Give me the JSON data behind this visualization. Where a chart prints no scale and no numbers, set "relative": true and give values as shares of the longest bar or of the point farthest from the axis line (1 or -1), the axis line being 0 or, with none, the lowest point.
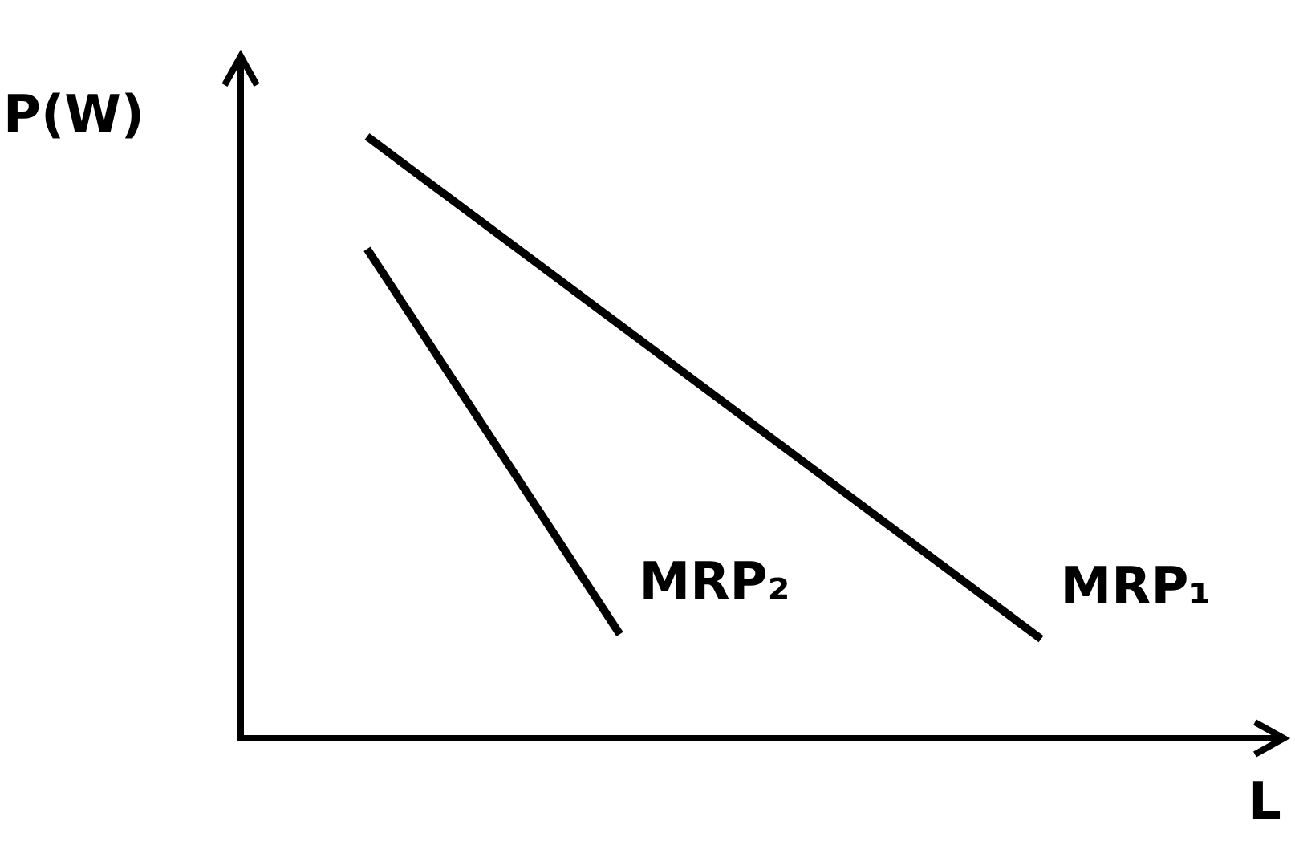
{
  "chart_data": {
    "type": "line",
    "relative": true,
    "xlabel": "L",
    "ylabel": "P(W)",
    "marker": "none",
    "categories": [
      null,
      null,
      null,
      null,
      null,
      null,
      null,
      null,
      null,
      null,
      null,
      null
    ],
    "series": [
      {
        "name": "MRP₁",
        "color": "#000000",
        "values": [
          null,
          1,
          null,
          null,
          null,
          null,
          null,
          null,
          null,
          0.165,
          null,
          null
        ]
      },
      {
        "name": "MRP₂",
        "color": "#000000",
        "values": [
          null,
          0.813,
          null,
          null,
          0.173,
          null,
          null,
          null,
          null,
          null,
          null,
          null
        ]
      }
    ]
  }
}
